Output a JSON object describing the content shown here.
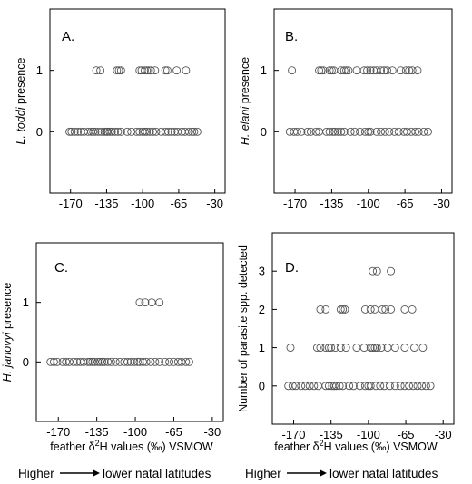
{
  "chart_data": [
    {
      "type": "scatter",
      "panel_label": "A.",
      "ylabel_italic": "L. toddi",
      "ylabel_rest": " presence",
      "xlabel": "",
      "xticks": [
        -170,
        -135,
        -100,
        -65,
        -30
      ],
      "yticks": [
        0,
        1
      ],
      "xlim": [
        -190,
        -20
      ],
      "ylim": [
        -1,
        2
      ],
      "points": [
        {
          "y": 1,
          "x": [
            -145,
            -141,
            -125,
            -123,
            -121,
            -103,
            -101,
            -98,
            -96,
            -94,
            -92,
            -88,
            -78,
            -76,
            -67,
            -58
          ]
        },
        {
          "y": 0,
          "x": [
            -171,
            -169,
            -166,
            -163,
            -160,
            -157,
            -153,
            -150,
            -148,
            -146,
            -143,
            -140,
            -137,
            -135,
            -134,
            -132,
            -130,
            -127,
            -124,
            -121,
            -115,
            -111,
            -106,
            -103,
            -100,
            -98,
            -96,
            -93,
            -90,
            -87,
            -82,
            -78,
            -75,
            -72,
            -69,
            -66,
            -62,
            -59,
            -55,
            -52,
            -50,
            -47
          ]
        }
      ]
    },
    {
      "type": "scatter",
      "panel_label": "B.",
      "ylabel_italic": "H. elani",
      "ylabel_rest": " presence",
      "xlabel": "",
      "xticks": [
        -170,
        -135,
        -100,
        -65,
        -30
      ],
      "yticks": [
        0,
        1
      ],
      "xlim": [
        -190,
        -20
      ],
      "ylim": [
        -1,
        2
      ],
      "points": [
        {
          "y": 1,
          "x": [
            -173,
            -147,
            -145,
            -143,
            -137,
            -135,
            -133,
            -126,
            -123,
            -121,
            -119,
            -111,
            -104,
            -101,
            -98,
            -95,
            -92,
            -88,
            -85,
            -82,
            -77,
            -69,
            -64,
            -61,
            -58,
            -53
          ]
        },
        {
          "y": 0,
          "x": [
            -175,
            -171,
            -168,
            -164,
            -158,
            -155,
            -150,
            -147,
            -140,
            -137,
            -134,
            -132,
            -129,
            -126,
            -123,
            -117,
            -113,
            -108,
            -103,
            -100,
            -98,
            -92,
            -88,
            -84,
            -80,
            -75,
            -71,
            -66,
            -63,
            -59,
            -55,
            -52,
            -47,
            -43
          ]
        }
      ]
    },
    {
      "type": "scatter",
      "panel_label": "C.",
      "ylabel_italic": "H. janovyi",
      "ylabel_rest": " presence",
      "xlabel": "feather δ²H values (‰) VSMOW",
      "xticks": [
        -170,
        -135,
        -100,
        -65,
        -30
      ],
      "yticks": [
        0,
        1
      ],
      "xlim": [
        -190,
        -20
      ],
      "ylim": [
        -1,
        2
      ],
      "points": [
        {
          "y": 1,
          "x": [
            -96,
            -91,
            -85,
            -78
          ]
        },
        {
          "y": 0,
          "x": [
            -177,
            -174,
            -171,
            -166,
            -163,
            -160,
            -156,
            -153,
            -150,
            -147,
            -143,
            -141,
            -139,
            -137,
            -134,
            -132,
            -130,
            -128,
            -125,
            -122,
            -118,
            -114,
            -110,
            -107,
            -104,
            -101,
            -98,
            -96,
            -93,
            -90,
            -86,
            -82,
            -78,
            -73,
            -69,
            -65,
            -61,
            -58,
            -54,
            -51
          ]
        }
      ]
    },
    {
      "type": "scatter",
      "panel_label": "D.",
      "ylabel_plain": "Number of parasite spp. detected",
      "xlabel": "feather δ²H values (‰) VSMOW",
      "xticks": [
        -170,
        -135,
        -100,
        -65,
        -30
      ],
      "yticks": [
        0,
        1,
        2,
        3
      ],
      "xlim": [
        -190,
        -20
      ],
      "ylim": [
        -1,
        4
      ],
      "points": [
        {
          "y": 3,
          "x": [
            -96,
            -92,
            -79
          ]
        },
        {
          "y": 2,
          "x": [
            -145,
            -140,
            -126,
            -124,
            -122,
            -103,
            -98,
            -94,
            -87,
            -84,
            -79,
            -66,
            -59
          ]
        },
        {
          "y": 1,
          "x": [
            -173,
            -148,
            -145,
            -140,
            -137,
            -135,
            -131,
            -126,
            -121,
            -111,
            -104,
            -98,
            -96,
            -94,
            -92,
            -88,
            -82,
            -75,
            -66,
            -57,
            -49
          ]
        },
        {
          "y": 0,
          "x": [
            -175,
            -171,
            -168,
            -163,
            -159,
            -155,
            -151,
            -147,
            -140,
            -137,
            -134,
            -132,
            -130,
            -127,
            -124,
            -118,
            -114,
            -108,
            -103,
            -100,
            -98,
            -93,
            -89,
            -85,
            -80,
            -75,
            -70,
            -66,
            -62,
            -58,
            -54,
            -50,
            -46,
            -42
          ]
        }
      ]
    }
  ],
  "xlabel_main": "feather δ",
  "xlabel_sup": "2",
  "xlabel_tail": "H values (‰) VSMOW",
  "caption_left": "Higher",
  "caption_right": "lower natal latitudes"
}
